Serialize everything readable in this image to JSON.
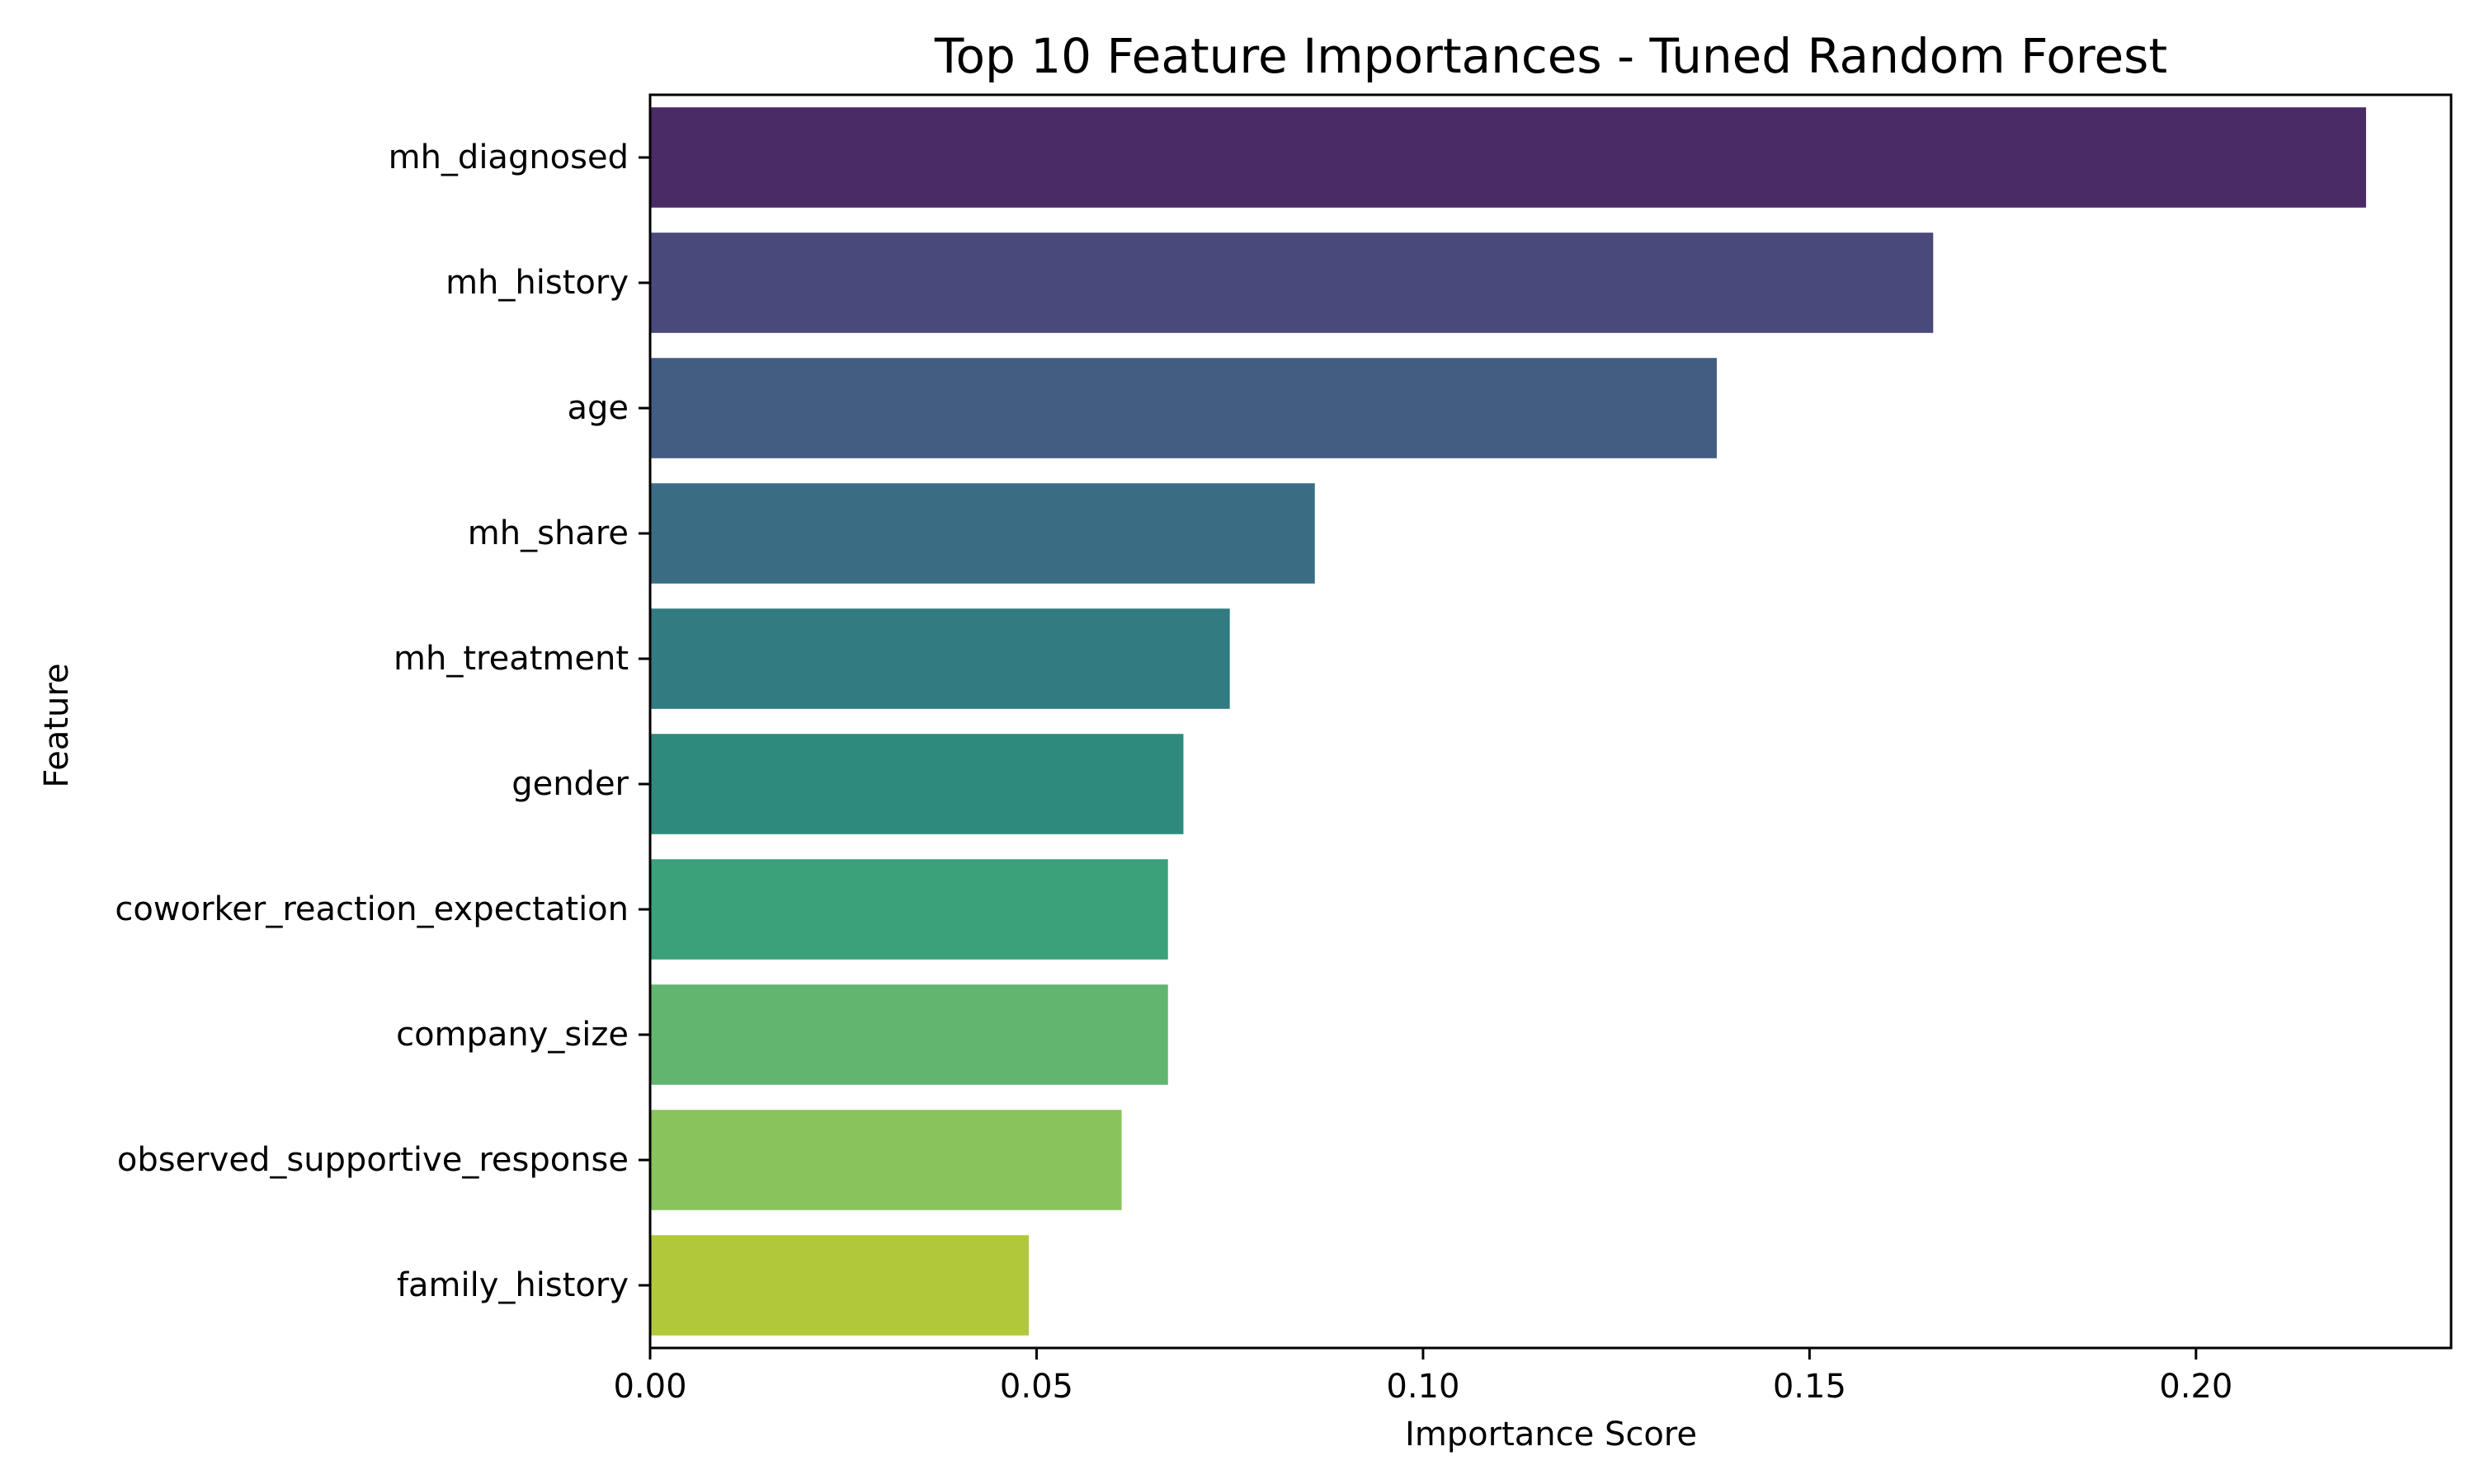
{
  "chart_data": {
    "type": "bar",
    "orientation": "horizontal",
    "title": "Top 10 Feature Importances - Tuned Random Forest",
    "xlabel": "Importance Score",
    "ylabel": "Feature",
    "xlim": [
      0,
      0.233
    ],
    "xticks": [
      0.0,
      0.05,
      0.1,
      0.15,
      0.2
    ],
    "xtick_labels": [
      "0.00",
      "0.05",
      "0.10",
      "0.15",
      "0.20"
    ],
    "grid": false,
    "categories": [
      "mh_diagnosed",
      "mh_history",
      "age",
      "mh_share",
      "mh_treatment",
      "gender",
      "coworker_reaction_expectation",
      "company_size",
      "observed_supportive_response",
      "family_history"
    ],
    "values": [
      0.222,
      0.166,
      0.138,
      0.086,
      0.075,
      0.069,
      0.067,
      0.067,
      0.061,
      0.049
    ],
    "colors": [
      "#4a2b66",
      "#4a497b",
      "#435c82",
      "#3a6d84",
      "#327b80",
      "#2f8a7e",
      "#3aa17a",
      "#62b56f",
      "#89c35c",
      "#b2c83b"
    ]
  }
}
